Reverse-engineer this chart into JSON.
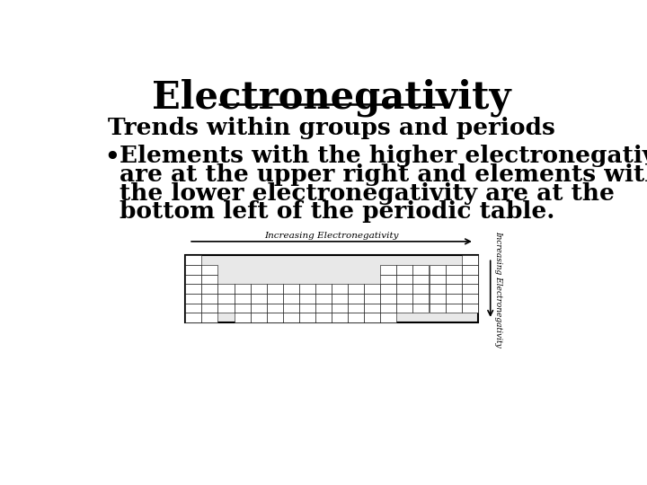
{
  "title": "Electronegativity",
  "subtitle": "Trends within groups and periods",
  "bullet_lines": [
    "Elements with the higher electronegativity",
    "are at the upper right and elements with",
    "the lower electronegativity are at the",
    "bottom left of the periodic table."
  ],
  "background_color": "#ffffff",
  "title_fontsize": 30,
  "subtitle_fontsize": 19,
  "bullet_fontsize": 19,
  "title_color": "#000000",
  "text_color": "#000000",
  "table_label_h": "Increasing Electronegativity",
  "table_label_v": "Increasing Electronegativity"
}
